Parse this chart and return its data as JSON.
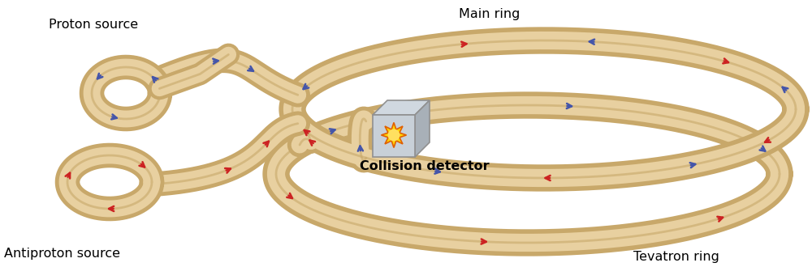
{
  "background_color": "#ffffff",
  "tube_fill": "#e8d0a0",
  "tube_edge": "#c8a86a",
  "tube_shadow": "#b89050",
  "blue_color": "#4455aa",
  "red_color": "#cc2222",
  "proton_label": "Proton source",
  "antiproton_label": "Antiproton source",
  "main_ring_label": "Main ring",
  "tevatron_label": "Tevatron ring",
  "detector_label": "Collision detector",
  "label_fontsize": 11.5
}
